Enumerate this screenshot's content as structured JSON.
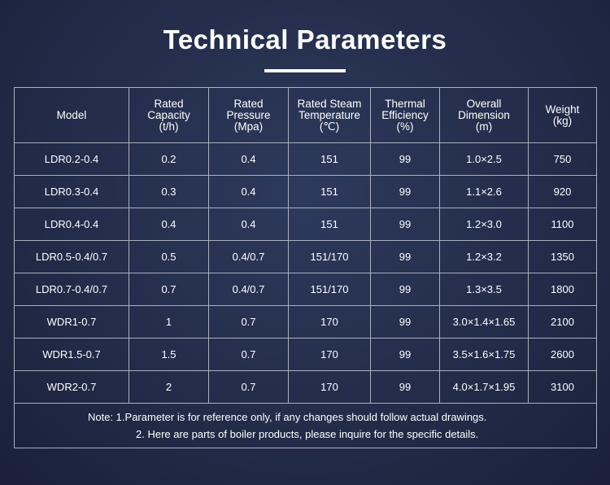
{
  "header": {
    "title": "Technical Parameters"
  },
  "table": {
    "columns": [
      "Model",
      "Rated\nCapacity\n(t/h)",
      "Rated\nPressure\n(Mpa)",
      "Rated Steam\nTemperature\n(℃)",
      "Thermal\nEfficiency\n(%)",
      "Overall\nDimension\n(m)",
      "Weight\n(kg)"
    ],
    "rows": [
      [
        "LDR0.2-0.4",
        "0.2",
        "0.4",
        "151",
        "99",
        "1.0×2.5",
        "750"
      ],
      [
        "LDR0.3-0.4",
        "0.3",
        "0.4",
        "151",
        "99",
        "1.1×2.6",
        "920"
      ],
      [
        "LDR0.4-0.4",
        "0.4",
        "0.4",
        "151",
        "99",
        "1.2×3.0",
        "1100"
      ],
      [
        "LDR0.5-0.4/0.7",
        "0.5",
        "0.4/0.7",
        "151/170",
        "99",
        "1.2×3.2",
        "1350"
      ],
      [
        "LDR0.7-0.4/0.7",
        "0.7",
        "0.4/0.7",
        "151/170",
        "99",
        "1.3×3.5",
        "1800"
      ],
      [
        "WDR1-0.7",
        "1",
        "0.7",
        "170",
        "99",
        "3.0×1.4×1.65",
        "2100"
      ],
      [
        "WDR1.5-0.7",
        "1.5",
        "0.7",
        "170",
        "99",
        "3.5×1.6×1.75",
        "2600"
      ],
      [
        "WDR2-0.7",
        "2",
        "0.7",
        "170",
        "99",
        "4.0×1.7×1.95",
        "3100"
      ]
    ]
  },
  "notes": [
    "Note: 1.Parameter is for reference only, if any changes should follow actual drawings.",
    "2. Here are parts of boiler products, please inquire for the specific details."
  ]
}
